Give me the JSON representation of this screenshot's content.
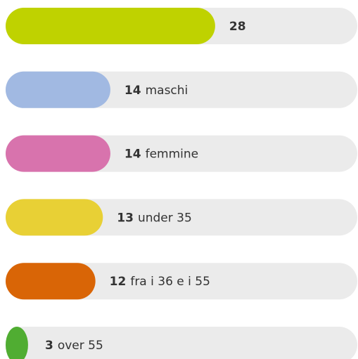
{
  "chart_data": {
    "type": "bar",
    "orientation": "horizontal",
    "categories": [
      null,
      "maschi",
      "femmine",
      "under 35",
      "fra i 36 e i 55",
      "over 55"
    ],
    "values": [
      28,
      14,
      14,
      13,
      12,
      3
    ],
    "colors": [
      "#bfd200",
      "#a1b9e2",
      "#d873ad",
      "#e8d035",
      "#d96506",
      "#50ad32"
    ],
    "track_color": "#ebebeb",
    "xlim": [
      0,
      47
    ]
  }
}
